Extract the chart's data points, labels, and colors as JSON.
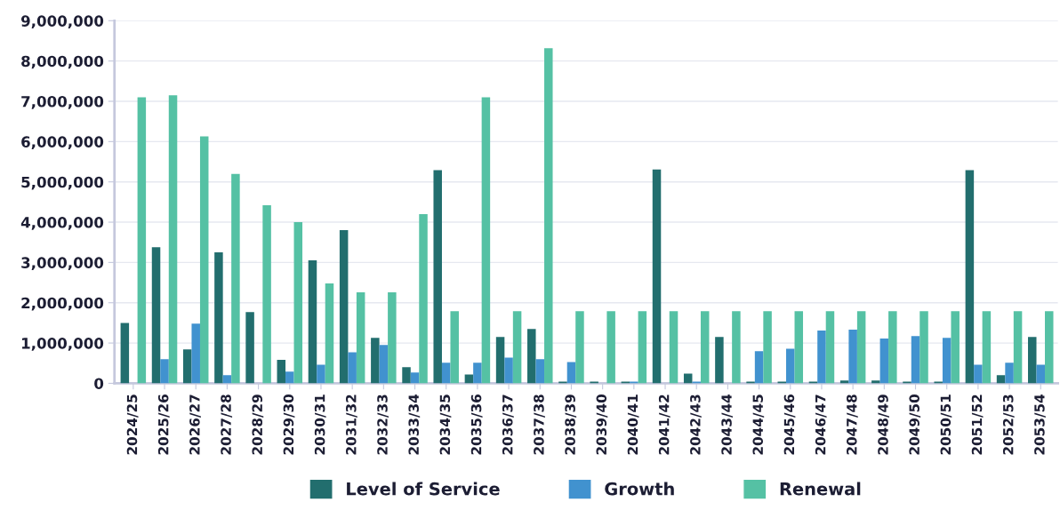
{
  "chart_data": {
    "type": "bar",
    "categories": [
      "2024/25",
      "2025/26",
      "2026/27",
      "2027/28",
      "2028/29",
      "2029/30",
      "2030/31",
      "2031/32",
      "2032/33",
      "2033/34",
      "2034/35",
      "2035/36",
      "2036/37",
      "2037/38",
      "2038/39",
      "2039/40",
      "2040/41",
      "2041/42",
      "2042/43",
      "2043/44",
      "2044/45",
      "2045/46",
      "2046/47",
      "2047/48",
      "2048/49",
      "2049/50",
      "2050/51",
      "2051/52",
      "2052/53",
      "2053/54"
    ],
    "series": [
      {
        "name": "Level of Service",
        "color": "#226e6e",
        "values": [
          1500000,
          3380000,
          840000,
          3250000,
          1770000,
          580000,
          3050000,
          3800000,
          1130000,
          400000,
          5290000,
          220000,
          1150000,
          1350000,
          40000,
          40000,
          40000,
          5310000,
          240000,
          1150000,
          40000,
          40000,
          40000,
          70000,
          70000,
          40000,
          40000,
          5290000,
          200000,
          1150000
        ]
      },
      {
        "name": "Growth",
        "color": "#4192cf",
        "values": [
          0,
          600000,
          1480000,
          200000,
          0,
          290000,
          460000,
          770000,
          950000,
          270000,
          510000,
          510000,
          640000,
          600000,
          530000,
          null,
          40000,
          null,
          40000,
          null,
          800000,
          860000,
          1310000,
          1330000,
          1110000,
          1170000,
          1130000,
          460000,
          510000,
          460000
        ]
      },
      {
        "name": "Renewal",
        "color": "#55c1a4",
        "values": [
          7100000,
          7150000,
          6130000,
          5200000,
          4420000,
          4000000,
          2480000,
          2260000,
          2260000,
          4200000,
          1790000,
          7100000,
          1790000,
          8320000,
          1790000,
          1790000,
          1790000,
          1790000,
          1790000,
          1790000,
          1790000,
          1790000,
          1790000,
          1790000,
          1790000,
          1790000,
          1790000,
          1790000,
          1790000,
          1790000
        ]
      }
    ],
    "ylim": [
      0,
      9000000
    ],
    "yticks": [
      {
        "value": 0,
        "label": "0"
      },
      {
        "value": 1000000,
        "label": "1,000,000"
      },
      {
        "value": 2000000,
        "label": "2,000,000"
      },
      {
        "value": 3000000,
        "label": "3,000,000"
      },
      {
        "value": 4000000,
        "label": "4,000,000"
      },
      {
        "value": 5000000,
        "label": "5,000,000"
      },
      {
        "value": 6000000,
        "label": "6,000,000"
      },
      {
        "value": 7000000,
        "label": "7,000,000"
      },
      {
        "value": 8000000,
        "label": "8,000,000"
      },
      {
        "value": 9000000,
        "label": "9,000,000"
      }
    ],
    "grid": "y",
    "legend": "bottom"
  }
}
